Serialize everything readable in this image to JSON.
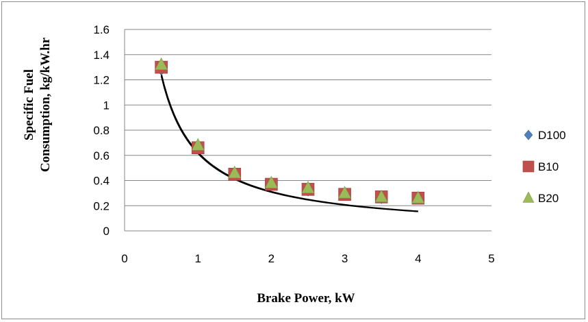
{
  "chart_data": {
    "type": "scatter",
    "title": "",
    "xlabel": "Brake Power, kW",
    "ylabel_lines": [
      "Specific Fuel",
      "Consumption, kg/kW.hr"
    ],
    "xlim": [
      0,
      5
    ],
    "ylim": [
      0,
      1.6
    ],
    "xticks": [
      "0",
      "1",
      "2",
      "3",
      "4",
      "5"
    ],
    "yticks": [
      "0",
      "0.2",
      "0.4",
      "0.6",
      "0.8",
      "1",
      "1.2",
      "1.4",
      "1.6"
    ],
    "grid": "horizontal",
    "legend_position": "right",
    "series": [
      {
        "name": "D100",
        "marker": "diamond",
        "color": "#4f81bd",
        "x": [
          0.5,
          1,
          1.5,
          2,
          2.5,
          3,
          3.5,
          4
        ],
        "y": [
          1.28,
          0.66,
          0.45,
          0.38,
          0.32,
          0.29,
          0.26,
          0.26
        ]
      },
      {
        "name": "B10",
        "marker": "square",
        "color": "#c0504d",
        "x": [
          0.5,
          1,
          1.5,
          2,
          2.5,
          3,
          3.5,
          4
        ],
        "y": [
          1.3,
          0.66,
          0.45,
          0.37,
          0.33,
          0.29,
          0.27,
          0.26
        ]
      },
      {
        "name": "B20",
        "marker": "triangle",
        "color": "#9bbb59",
        "x": [
          0.5,
          1,
          1.5,
          2,
          2.5,
          3,
          3.5,
          4
        ],
        "y": [
          1.32,
          0.68,
          0.46,
          0.38,
          0.34,
          0.3,
          0.27,
          0.26
        ]
      }
    ],
    "trendlines": [
      {
        "type": "power",
        "a": 0.62,
        "b": -1.0,
        "color": "#000000"
      },
      {
        "type": "power",
        "a": 0.615,
        "b": -1.0,
        "color": "#000000"
      },
      {
        "type": "power",
        "a": 0.625,
        "b": -1.0,
        "color": "#000000"
      }
    ]
  }
}
